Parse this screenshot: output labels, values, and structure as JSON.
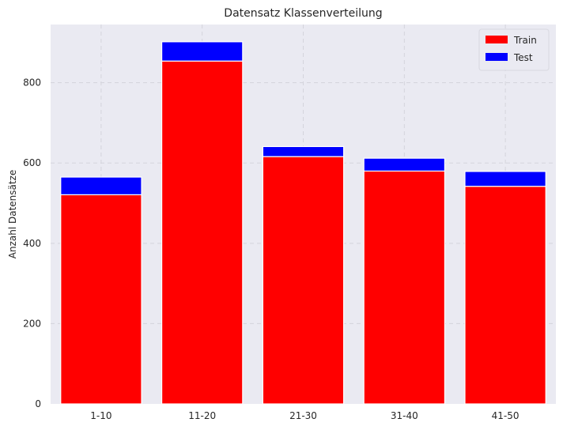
{
  "chart_data": {
    "type": "bar",
    "stacked": true,
    "title": "Datensatz Klassenverteilung",
    "xlabel": "",
    "ylabel": "Anzahl Datensätze",
    "categories": [
      "1-10",
      "11-20",
      "21-30",
      "31-40",
      "41-50"
    ],
    "series": [
      {
        "name": "Train",
        "color": "#ff0000",
        "values": [
          521,
          854,
          616,
          580,
          542
        ]
      },
      {
        "name": "Test",
        "color": "#0000ff",
        "values": [
          44,
          48,
          25,
          32,
          37
        ]
      }
    ],
    "ylim": [
      0,
      945
    ],
    "yticks": [
      0,
      200,
      400,
      600,
      800
    ],
    "grid": true,
    "legend_position": "top-right",
    "background_color": "#eaeaf2"
  }
}
